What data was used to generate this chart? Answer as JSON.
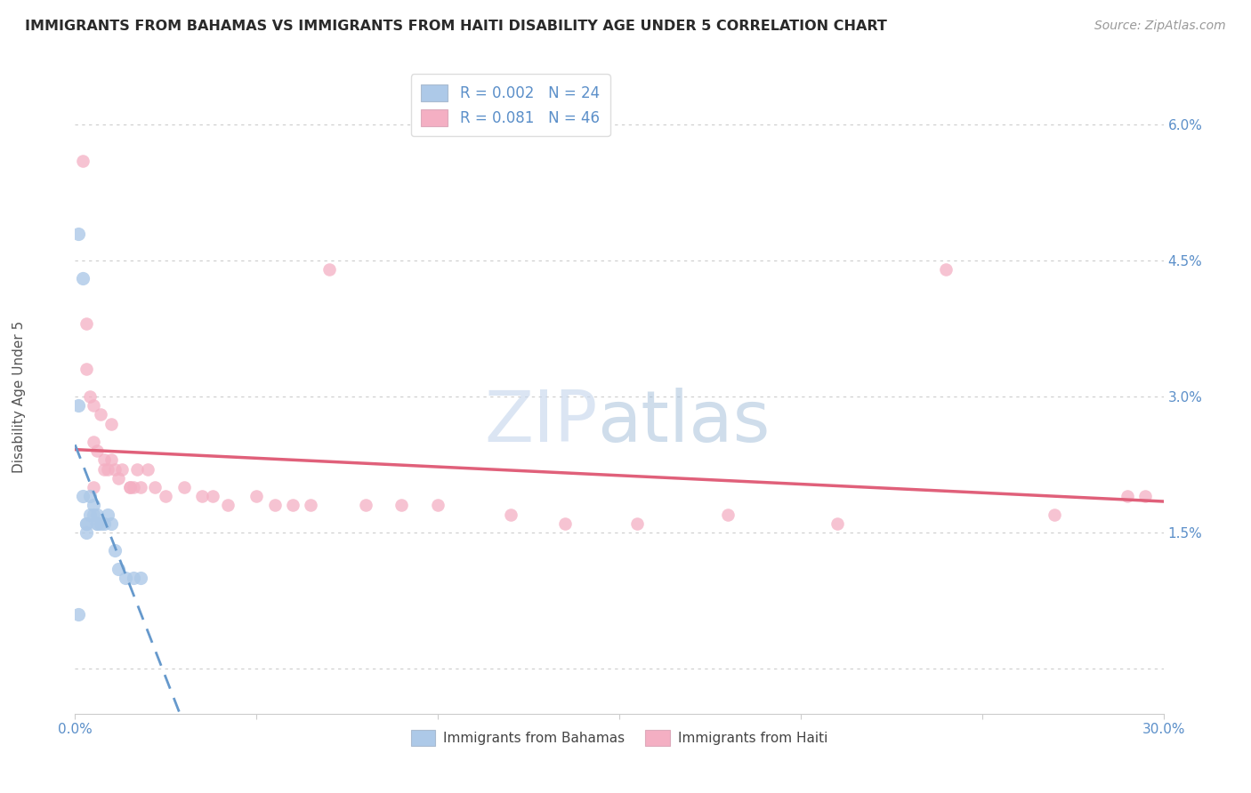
{
  "title": "IMMIGRANTS FROM BAHAMAS VS IMMIGRANTS FROM HAITI DISABILITY AGE UNDER 5 CORRELATION CHART",
  "source_text": "Source: ZipAtlas.com",
  "ylabel": "Disability Age Under 5",
  "xlim": [
    0.0,
    0.3
  ],
  "ylim": [
    -0.005,
    0.065
  ],
  "ytick_vals": [
    0.0,
    0.015,
    0.03,
    0.045,
    0.06
  ],
  "ytick_labels": [
    "",
    "1.5%",
    "3.0%",
    "4.5%",
    "6.0%"
  ],
  "xtick_vals": [
    0.0,
    0.05,
    0.1,
    0.15,
    0.2,
    0.25,
    0.3
  ],
  "xtick_labels": [
    "0.0%",
    "",
    "",
    "",
    "",
    "",
    "30.0%"
  ],
  "legend_labels": [
    "Immigrants from Bahamas",
    "Immigrants from Haiti"
  ],
  "r_bahamas": 0.002,
  "n_bahamas": 24,
  "r_haiti": 0.081,
  "n_haiti": 46,
  "color_bahamas": "#adc9e8",
  "color_haiti": "#f4afc3",
  "line_color_bahamas": "#6699cc",
  "line_color_haiti": "#e0607a",
  "background_color": "#ffffff",
  "grid_color": "#cccccc",
  "title_color": "#2a2a2a",
  "axis_label_color": "#5b8fc9",
  "tick_label_color": "#5b8fc9",
  "bahamas_x": [
    0.001,
    0.002,
    0.001,
    0.002,
    0.003,
    0.003,
    0.004,
    0.004,
    0.005,
    0.005,
    0.006,
    0.006,
    0.006,
    0.007,
    0.008,
    0.009,
    0.01,
    0.011,
    0.012,
    0.014,
    0.016,
    0.018,
    0.001,
    0.003
  ],
  "bahamas_y": [
    0.048,
    0.043,
    0.029,
    0.019,
    0.016,
    0.016,
    0.019,
    0.017,
    0.018,
    0.017,
    0.017,
    0.016,
    0.016,
    0.016,
    0.016,
    0.017,
    0.016,
    0.013,
    0.011,
    0.01,
    0.01,
    0.01,
    0.006,
    0.015
  ],
  "haiti_x": [
    0.002,
    0.003,
    0.003,
    0.004,
    0.005,
    0.005,
    0.006,
    0.007,
    0.008,
    0.008,
    0.009,
    0.01,
    0.01,
    0.011,
    0.012,
    0.013,
    0.015,
    0.016,
    0.017,
    0.018,
    0.02,
    0.022,
    0.025,
    0.03,
    0.035,
    0.038,
    0.042,
    0.05,
    0.055,
    0.06,
    0.065,
    0.08,
    0.09,
    0.1,
    0.12,
    0.135,
    0.155,
    0.18,
    0.21,
    0.24,
    0.27,
    0.29,
    0.295,
    0.005,
    0.015,
    0.07
  ],
  "haiti_y": [
    0.056,
    0.038,
    0.033,
    0.03,
    0.029,
    0.025,
    0.024,
    0.028,
    0.023,
    0.022,
    0.022,
    0.023,
    0.027,
    0.022,
    0.021,
    0.022,
    0.02,
    0.02,
    0.022,
    0.02,
    0.022,
    0.02,
    0.019,
    0.02,
    0.019,
    0.019,
    0.018,
    0.019,
    0.018,
    0.018,
    0.018,
    0.018,
    0.018,
    0.018,
    0.017,
    0.016,
    0.016,
    0.017,
    0.016,
    0.044,
    0.017,
    0.019,
    0.019,
    0.02,
    0.02,
    0.044
  ],
  "watermark_zip_color": "#c8d8ed",
  "watermark_atlas_color": "#a0bcd8"
}
